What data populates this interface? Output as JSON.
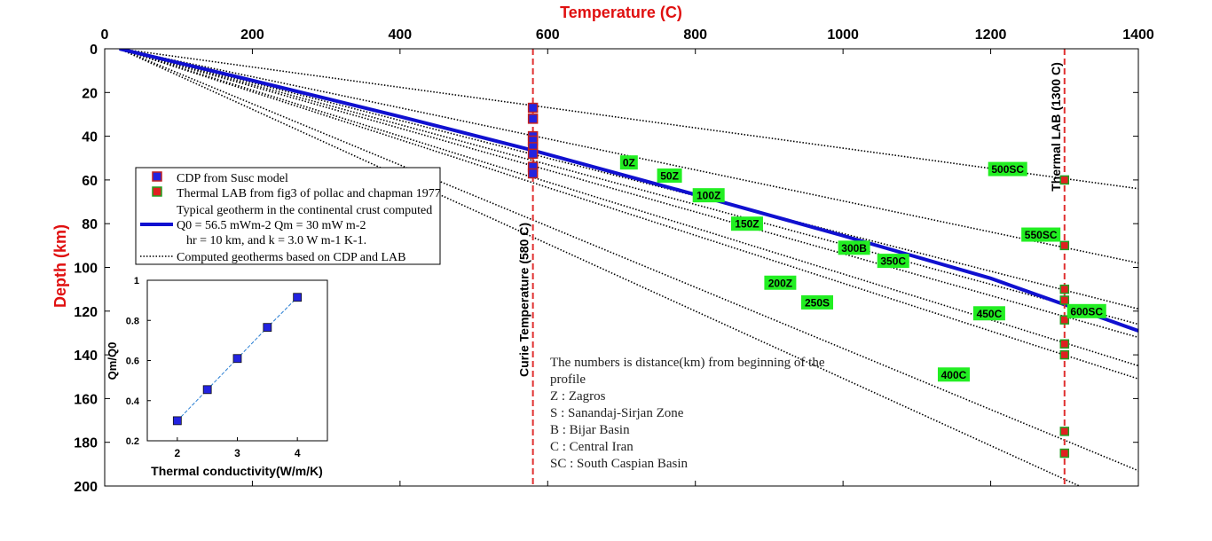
{
  "chart_data": [
    {
      "type": "line",
      "title": "",
      "xlabel": "Temperature (C)",
      "ylabel": "Depth (km)",
      "xlim": [
        0,
        1400
      ],
      "ylim": [
        0,
        200
      ],
      "y_reversed": true,
      "x_axis_position": "top",
      "x_ticks": [
        "0",
        "200",
        "400",
        "600",
        "800",
        "1000",
        "1200",
        "1400"
      ],
      "y_ticks": [
        "0",
        "20",
        "40",
        "60",
        "80",
        "100",
        "120",
        "140",
        "160",
        "180",
        "200"
      ],
      "grid": false,
      "legend_position": "upper-left",
      "legend": [
        "CDP from Susc model",
        "Thermal LAB from fig3 of pollac and chapman 1977",
        "Typical geotherm in the continental crust computed",
        "Q0 = 56.5 mWm-2  Qm = 30 mW m-2",
        "hr = 10 km, and k = 3.0 W m-1 K-1.",
        "Computed geotherms based on CDP and LAB"
      ],
      "vlines": [
        {
          "x": 580,
          "label": "Curie Temperature (580 C)",
          "color": "#e03030"
        },
        {
          "x": 1300,
          "label": "Thermal LAB (1300 C)",
          "color": "#e03030"
        }
      ],
      "cdp_points": {
        "x": 580,
        "depths": [
          27,
          32,
          40,
          42,
          45,
          48,
          54,
          57
        ]
      },
      "lab_points": {
        "x": 1300,
        "depths": [
          60,
          90,
          110,
          115,
          124,
          135,
          140,
          175,
          185
        ]
      },
      "typical_geotherm": {
        "color": "#1010d0",
        "x": [
          20,
          200,
          400,
          580,
          800,
          1000,
          1200,
          1400
        ],
        "y": [
          0,
          14.5,
          31.0,
          46.5,
          66.7,
          85.5,
          105.0,
          129.0
        ]
      },
      "computed_geotherms": [
        {
          "x": [
            20,
            1400
          ],
          "y": [
            0,
            64
          ]
        },
        {
          "x": [
            20,
            1400
          ],
          "y": [
            0,
            98
          ]
        },
        {
          "x": [
            20,
            1400
          ],
          "y": [
            0,
            119
          ]
        },
        {
          "x": [
            20,
            1400
          ],
          "y": [
            0,
            126
          ]
        },
        {
          "x": [
            20,
            1400
          ],
          "y": [
            0,
            132
          ]
        },
        {
          "x": [
            20,
            1400
          ],
          "y": [
            0,
            145
          ]
        },
        {
          "x": [
            20,
            1400
          ],
          "y": [
            0,
            151
          ]
        },
        {
          "x": [
            20,
            1400
          ],
          "y": [
            0,
            193
          ]
        },
        {
          "x": [
            20,
            1320
          ],
          "y": [
            0,
            200
          ]
        }
      ],
      "labels": [
        {
          "text": "0Z",
          "x": 710,
          "y": 52
        },
        {
          "text": "50Z",
          "x": 765,
          "y": 58
        },
        {
          "text": "100Z",
          "x": 818,
          "y": 67
        },
        {
          "text": "150Z",
          "x": 870,
          "y": 80
        },
        {
          "text": "200Z",
          "x": 915,
          "y": 107
        },
        {
          "text": "250S",
          "x": 965,
          "y": 116
        },
        {
          "text": "300B",
          "x": 1015,
          "y": 91
        },
        {
          "text": "350C",
          "x": 1068,
          "y": 97
        },
        {
          "text": "400C",
          "x": 1150,
          "y": 149
        },
        {
          "text": "450C",
          "x": 1198,
          "y": 121
        },
        {
          "text": "500SC",
          "x": 1223,
          "y": 55
        },
        {
          "text": "550SC",
          "x": 1268,
          "y": 85
        },
        {
          "text": "600SC",
          "x": 1330,
          "y": 120
        }
      ],
      "annotation": [
        " The numbers is distance(km) from beginning of the",
        "profile",
        "Z : Zagros",
        " S : Sanandaj-Sirjan Zone",
        "B : Bijar Basin",
        "C : Central Iran",
        "SC : South Caspian Basin"
      ]
    },
    {
      "type": "line",
      "title": "",
      "xlabel": "Thermal conductivity(W/m/K)",
      "ylabel": "Qm/Q0",
      "xlim": [
        1.5,
        4.5
      ],
      "ylim": [
        0.2,
        1.0
      ],
      "x_ticks": [
        "2",
        "3",
        "4"
      ],
      "y_ticks": [
        "0.2",
        "0.4",
        "0.6",
        "0.8",
        "1"
      ],
      "x": [
        2,
        2.5,
        3,
        3.5,
        4
      ],
      "y": [
        0.3,
        0.455,
        0.61,
        0.765,
        0.915
      ]
    }
  ]
}
